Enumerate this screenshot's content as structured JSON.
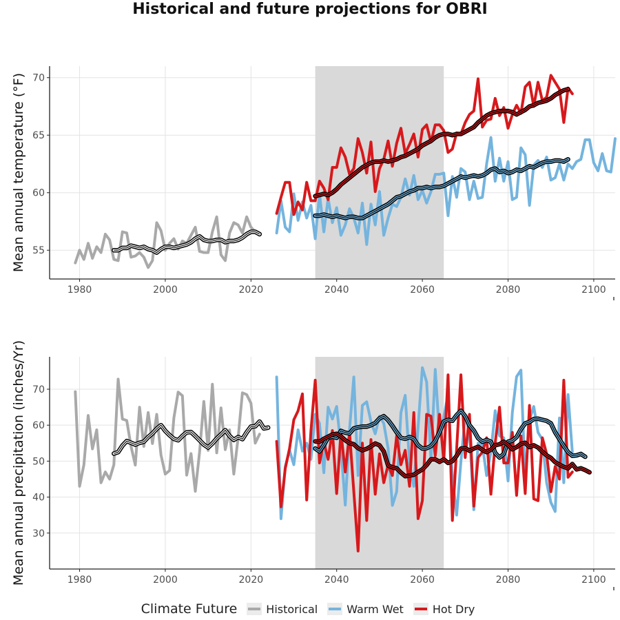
{
  "title": "Historical and future projections for OBRI",
  "legend": {
    "title": "Climate Future",
    "items": [
      {
        "label": "Historical",
        "color": "#a9a9a9"
      },
      {
        "label": "Warm Wet",
        "color": "#74b4de"
      },
      {
        "label": "Hot Dry",
        "color": "#d7191c"
      }
    ]
  },
  "colors": {
    "historical": "#a9a9a9",
    "warm_wet": "#74b4de",
    "hot_dry": "#d7191c",
    "smooth": "#000000",
    "shade": "#d9d9d9",
    "grid": "#e3e3e3"
  },
  "chart_data": [
    {
      "type": "line",
      "ylabel": "Mean annual temperature (°F)",
      "xlabel": "",
      "xlim": [
        1973,
        2105
      ],
      "ylim": [
        52.5,
        71
      ],
      "xticks": [
        1980,
        2000,
        2020,
        2040,
        2060,
        2080,
        2100
      ],
      "yticks": [
        55,
        60,
        65,
        70
      ],
      "shaded_period": [
        2035,
        2065
      ],
      "series": [
        {
          "name": "Historical",
          "color_key": "historical",
          "x_start": 1979,
          "values": [
            53.9,
            55.0,
            54.2,
            55.6,
            54.3,
            55.3,
            54.8,
            56.4,
            55.9,
            54.2,
            54.1,
            56.6,
            56.5,
            54.4,
            54.5,
            54.8,
            54.4,
            53.5,
            54.1,
            57.4,
            56.7,
            55.0,
            55.6,
            56.0,
            55.1,
            55.8,
            55.6,
            56.3,
            57.0,
            54.9,
            54.8,
            54.8,
            56.6,
            57.9,
            54.6,
            54.1,
            56.5,
            57.4,
            57.2,
            56.5,
            57.9,
            57.0,
            56.6,
            56.3
          ]
        },
        {
          "name": "Warm Wet",
          "color_key": "warm_wet",
          "x_start": 2026,
          "values": [
            56.5,
            59.3,
            57.0,
            56.6,
            59.9,
            57.6,
            59.2,
            57.8,
            58.9,
            56.0,
            59.9,
            56.6,
            59.5,
            57.4,
            58.7,
            56.3,
            57.2,
            58.6,
            57.8,
            56.5,
            59.1,
            55.5,
            59.0,
            57.2,
            60.1,
            56.3,
            57.8,
            59.0,
            58.8,
            59.6,
            61.2,
            59.8,
            61.5,
            59.4,
            60.2,
            59.1,
            60.1,
            61.6,
            61.6,
            61.7,
            58.0,
            61.4,
            59.6,
            62.1,
            61.8,
            59.4,
            61.0,
            59.5,
            59.6,
            62.5,
            64.8,
            61.0,
            63.0,
            61.0,
            62.7,
            59.4,
            59.6,
            63.9,
            63.3,
            58.9,
            62.4,
            62.8,
            62.2,
            63.1,
            61.1,
            61.3,
            62.5,
            61.1,
            62.5,
            62.1,
            62.7,
            62.9,
            64.6,
            64.6,
            62.6,
            61.9,
            63.4,
            61.9,
            61.8,
            64.7
          ]
        },
        {
          "name": "Hot Dry",
          "color_key": "hot_dry",
          "x_start": 2026,
          "values": [
            58.2,
            59.6,
            60.9,
            60.9,
            58.1,
            59.2,
            58.5,
            60.9,
            59.3,
            59.3,
            61.0,
            60.4,
            59.4,
            62.2,
            62.2,
            63.9,
            63.1,
            61.6,
            62.1,
            64.7,
            63.5,
            61.7,
            64.4,
            60.1,
            62.1,
            62.9,
            64.5,
            62.3,
            64.3,
            65.6,
            63.4,
            64.2,
            65.1,
            63.1,
            65.5,
            65.9,
            64.4,
            65.9,
            65.9,
            65.4,
            63.5,
            63.8,
            65.2,
            65.1,
            66.1,
            66.8,
            67.1,
            69.9,
            65.7,
            66.3,
            66.4,
            68.2,
            66.7,
            67.4,
            65.6,
            66.8,
            67.6,
            66.9,
            69.2,
            69.6,
            67.5,
            69.6,
            68.0,
            68.3,
            70.2,
            69.6,
            69.0,
            66.1,
            69.1,
            68.6
          ]
        },
        {
          "name": "Historical smoothed",
          "color_key": "smooth",
          "x_start": 1988,
          "values": [
            55.0,
            55.0,
            55.2,
            55.2,
            55.4,
            55.3,
            55.2,
            55.3,
            55.1,
            55.0,
            54.8,
            55.1,
            55.3,
            55.3,
            55.2,
            55.3,
            55.4,
            55.5,
            55.7,
            56.0,
            56.2,
            55.9,
            55.8,
            55.8,
            55.9,
            55.9,
            55.7,
            55.8,
            55.8,
            55.9,
            56.1,
            56.4,
            56.6,
            56.6,
            56.4
          ]
        },
        {
          "name": "Warm Wet smoothed",
          "color_key": "smooth",
          "x_start": 2035,
          "values": [
            58.0,
            58.0,
            58.1,
            58.0,
            57.9,
            58.0,
            57.9,
            57.8,
            57.9,
            57.9,
            57.8,
            57.8,
            58.0,
            58.2,
            58.4,
            58.6,
            58.8,
            59.0,
            59.3,
            59.6,
            59.7,
            59.9,
            60.1,
            60.2,
            60.4,
            60.4,
            60.5,
            60.4,
            60.5,
            60.5,
            60.6,
            60.8,
            61.0,
            61.2,
            61.4,
            61.3,
            61.4,
            61.5,
            61.4,
            61.5,
            61.7,
            62.0,
            62.1,
            61.8,
            61.9,
            61.7,
            61.8,
            62.0,
            61.9,
            62.1,
            62.3,
            62.2,
            62.4,
            62.6,
            62.7,
            62.7,
            62.8,
            62.8,
            62.7,
            62.9
          ]
        },
        {
          "name": "Hot Dry smoothed",
          "color_key": "smooth",
          "x_start": 2035,
          "values": [
            59.7,
            59.8,
            59.9,
            59.8,
            60.0,
            60.3,
            60.7,
            61.0,
            61.3,
            61.6,
            61.9,
            62.2,
            62.4,
            62.6,
            62.7,
            62.7,
            62.8,
            62.7,
            62.8,
            62.9,
            63.1,
            63.2,
            63.4,
            63.6,
            63.8,
            64.1,
            64.3,
            64.5,
            64.8,
            65.0,
            65.1,
            65.1,
            65.0,
            65.1,
            65.1,
            65.3,
            65.5,
            65.7,
            66.1,
            66.4,
            66.7,
            66.9,
            67.0,
            67.1,
            67.1,
            67.1,
            67.0,
            66.8,
            67.0,
            67.2,
            67.5,
            67.6,
            67.8,
            67.9,
            68.0,
            68.2,
            68.5,
            68.7,
            68.9,
            69.0
          ]
        }
      ]
    },
    {
      "type": "line",
      "ylabel": "Mean annual precipitation (inches/Yr)",
      "xlabel": "",
      "xlim": [
        1973,
        2105
      ],
      "ylim": [
        20,
        79
      ],
      "xticks": [
        1980,
        2000,
        2020,
        2040,
        2060,
        2080,
        2100
      ],
      "yticks": [
        30,
        40,
        50,
        60,
        70
      ],
      "shaded_period": [
        2035,
        2065
      ],
      "series": [
        {
          "name": "Historical",
          "color_key": "historical",
          "x_start": 1979,
          "values": [
            69.3,
            43.0,
            49.0,
            62.7,
            53.4,
            58.7,
            44.0,
            47.0,
            45.0,
            49.0,
            72.8,
            61.7,
            61.3,
            54.1,
            48.9,
            65.0,
            54.1,
            63.5,
            54.9,
            63.0,
            51.7,
            46.4,
            47.4,
            62.0,
            69.2,
            68.2,
            46.1,
            52.1,
            41.6,
            52.5,
            66.6,
            53.0,
            71.4,
            52.3,
            64.8,
            53.2,
            58.7,
            46.4,
            56.6,
            69.0,
            68.5,
            66.1,
            55.0,
            57.5
          ]
        },
        {
          "name": "Warm Wet",
          "color_key": "warm_wet",
          "x_start": 2026,
          "values": [
            73.4,
            34.0,
            48.5,
            53.0,
            49.0,
            58.7,
            52.8,
            55.0,
            50.5,
            63.0,
            60.5,
            46.8,
            65.0,
            61.7,
            65.2,
            54.0,
            37.8,
            58.8,
            73.4,
            46.0,
            65.5,
            66.5,
            61.0,
            57.6,
            62.5,
            60.5,
            53.5,
            37.7,
            41.5,
            63.5,
            68.3,
            49.5,
            43.0,
            59.5,
            76.0,
            72.0,
            50.3,
            75.5,
            57.0,
            62.3,
            68.5,
            45.5,
            35.0,
            50.0,
            62.5,
            58.0,
            36.5,
            55.0,
            54.5,
            46.0,
            52.5,
            64.0,
            57.0,
            56.5,
            44.5,
            63.5,
            73.5,
            75.3,
            44.5,
            61.5,
            65.2,
            58.0,
            56.0,
            44.0,
            38.5,
            36.0,
            62.0,
            44.0,
            68.5,
            52.5
          ]
        },
        {
          "name": "Hot Dry",
          "color_key": "hot_dry",
          "x_start": 2026,
          "values": [
            55.5,
            37.3,
            48.0,
            53.5,
            61.5,
            64.0,
            68.7,
            39.2,
            58.5,
            72.5,
            49.5,
            55.3,
            50.5,
            58.5,
            41.0,
            58.0,
            47.0,
            58.0,
            41.5,
            25.0,
            55.0,
            33.5,
            56.0,
            40.8,
            52.0,
            44.0,
            49.0,
            46.0,
            57.0,
            49.0,
            53.0,
            43.0,
            63.5,
            34.0,
            39.0,
            63.0,
            62.5,
            51.5,
            63.0,
            50.0,
            74.0,
            33.5,
            53.5,
            74.0,
            51.0,
            63.0,
            37.5,
            51.0,
            52.5,
            56.5,
            40.8,
            55.0,
            65.0,
            49.5,
            49.5,
            58.0,
            40.5,
            57.0,
            41.0,
            65.5,
            39.5,
            39.0,
            56.5,
            52.0,
            41.5,
            48.5,
            45.0,
            72.5,
            45.5,
            47.0
          ]
        },
        {
          "name": "Historical smoothed",
          "color_key": "smooth",
          "x_start": 1988,
          "values": [
            52.1,
            52.5,
            54.3,
            55.6,
            55.1,
            54.6,
            55.1,
            55.4,
            56.7,
            57.7,
            59.0,
            60.0,
            58.4,
            57.2,
            56.2,
            55.8,
            57.0,
            58.0,
            58.1,
            57.0,
            55.8,
            54.6,
            53.8,
            54.9,
            56.3,
            57.4,
            58.6,
            57.0,
            55.9,
            56.7,
            56.1,
            58.0,
            59.6,
            59.7,
            61.0,
            59.1,
            59.3
          ]
        },
        {
          "name": "Warm Wet smoothed",
          "color_key": "smooth",
          "x_start": 2035,
          "values": [
            53.5,
            52.7,
            54.5,
            56.5,
            56.8,
            56.5,
            58.4,
            57.9,
            57.7,
            59.1,
            59.4,
            59.6,
            59.6,
            60.0,
            60.6,
            61.9,
            62.5,
            61.4,
            59.8,
            58.0,
            56.5,
            56.2,
            56.7,
            56.2,
            54.4,
            53.5,
            53.6,
            54.2,
            55.6,
            58.0,
            61.0,
            61.5,
            61.2,
            62.8,
            64.0,
            62.5,
            60.0,
            58.5,
            56.4,
            55.4,
            55.9,
            55.4,
            52.3,
            51.0,
            52.0,
            55.4,
            55.7,
            56.7,
            58.9,
            60.5,
            60.9,
            61.7,
            61.8,
            61.5,
            61.2,
            60.5,
            58.0,
            56.1,
            54.2,
            52.5,
            51.5,
            51.6,
            52.0,
            51.2
          ]
        },
        {
          "name": "Hot Dry smoothed",
          "color_key": "smooth",
          "x_start": 2035,
          "values": [
            55.5,
            55.4,
            56.2,
            56.8,
            57.4,
            57.6,
            56.9,
            55.8,
            55.0,
            54.7,
            53.6,
            53.0,
            53.4,
            54.1,
            54.9,
            54.4,
            52.7,
            48.8,
            48.3,
            48.0,
            46.8,
            45.8,
            46.0,
            46.2,
            47.0,
            47.7,
            48.9,
            50.5,
            50.5,
            49.8,
            50.5,
            49.5,
            50.0,
            51.5,
            53.5,
            53.6,
            52.9,
            53.5,
            54.0,
            53.1,
            52.5,
            53.2,
            54.4,
            54.7,
            55.4,
            54.5,
            53.3,
            53.9,
            54.8,
            55.1,
            53.9,
            54.4,
            53.8,
            52.6,
            51.6,
            50.9,
            49.7,
            49.0,
            48.4,
            48.0,
            49.2,
            47.7,
            48.0,
            47.5,
            46.9
          ]
        }
      ]
    }
  ]
}
